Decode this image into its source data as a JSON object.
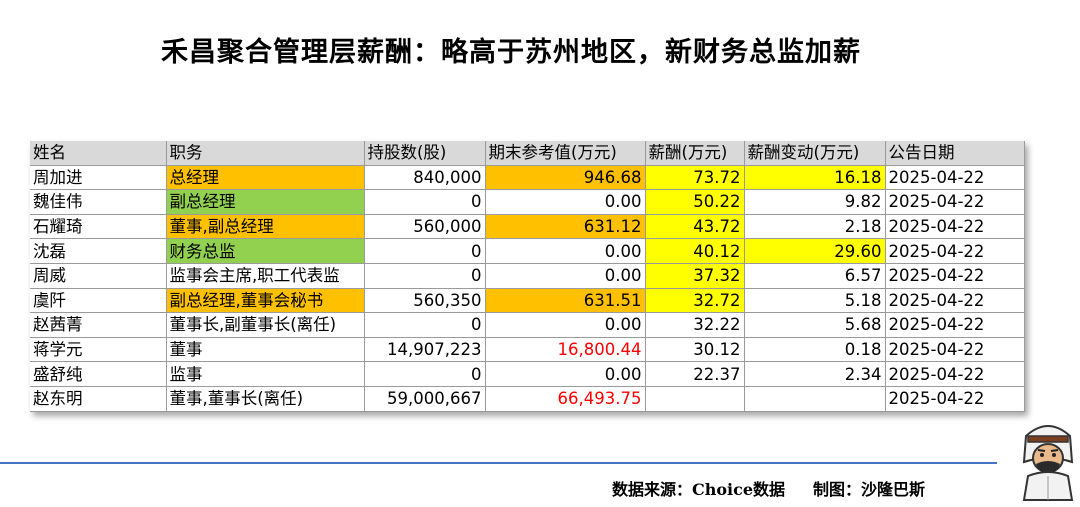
{
  "title": "禾昌聚合管理层薪酬：略高于苏州地区，新财务总监加薪",
  "table": {
    "headers": [
      "姓名",
      "职务",
      "持股数(股)",
      "期末参考值(万元)",
      "薪酬(万元)",
      "薪酬变动(万元)",
      "公告日期"
    ],
    "rows": [
      [
        "周加进",
        "总经理",
        "840,000",
        "946.68",
        "73.72",
        "16.18",
        "2025-04-22"
      ],
      [
        "魏佳伟",
        "副总经理",
        "0",
        "0.00",
        "50.22",
        "9.82",
        "2025-04-22"
      ],
      [
        "石耀琦",
        "董事,副总经理",
        "560,000",
        "631.12",
        "43.72",
        "2.18",
        "2025-04-22"
      ],
      [
        "沈磊",
        "财务总监",
        "0",
        "0.00",
        "40.12",
        "29.60",
        "2025-04-22"
      ],
      [
        "周威",
        "监事会主席,职工代表监",
        "0",
        "0.00",
        "37.32",
        "6.57",
        "2025-04-22"
      ],
      [
        "虞阡",
        "副总经理,董事会秘书",
        "560,350",
        "631.51",
        "32.72",
        "5.18",
        "2025-04-22"
      ],
      [
        "赵茜菁",
        "董事长,副董事长(离任)",
        "0",
        "0.00",
        "32.22",
        "5.68",
        "2025-04-22"
      ],
      [
        "蒋学元",
        "董事",
        "14,907,223",
        "16,800.44",
        "30.12",
        "0.18",
        "2025-04-22"
      ],
      [
        "盛舒纯",
        "监事",
        "0",
        "0.00",
        "22.37",
        "2.34",
        "2025-04-22"
      ],
      [
        "赵东明",
        "董事,董事长(离任)",
        "59,000,667",
        "66,493.75",
        "",
        "",
        "2025-04-22"
      ]
    ]
  },
  "colors": {
    "orange": "#ffc000",
    "green": "#92d050",
    "yellow": "#ffff00",
    "red_text": "#ff0000",
    "header_bg": "#d9d9d9",
    "footer_line": "#4472c4"
  },
  "footer": {
    "source": "数据来源：Choice数据",
    "credit": "制图：沙隆巴斯"
  },
  "mascot_icon": "mascot-icon"
}
